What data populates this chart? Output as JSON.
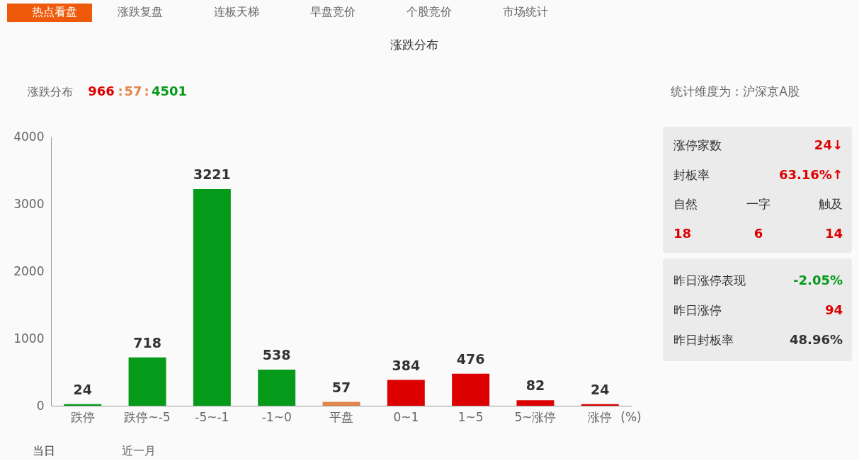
{
  "chart_data": [
    {
      "type": "bar",
      "title": "涨跌分布",
      "xlabel": "(%)",
      "categories": [
        "跌停",
        "跌停~-5",
        "-5~-1",
        "-1~0",
        "平盘",
        "0~1",
        "1~5",
        "5~涨停",
        "涨停"
      ],
      "values": [
        24,
        718,
        3221,
        538,
        57,
        384,
        476,
        82,
        24
      ],
      "colors": [
        "#069a1a",
        "#069a1a",
        "#069a1a",
        "#069a1a",
        "#e0854c",
        "#dd0000",
        "#dd0000",
        "#dd0000",
        "#dd0000"
      ],
      "data_labels": true,
      "ylim": [
        0,
        4000
      ],
      "yticks": [
        0,
        1000,
        2000,
        3000,
        4000
      ],
      "grid": false,
      "annotations": [
        "热点看盘",
        "涨跌复盘",
        "连板天梯",
        "早盘竞价",
        "个股竞价",
        "市场统计",
        "涨跌分布",
        "966",
        ":",
        "57",
        ":",
        "4501",
        "当日",
        "近一月"
      ]
    },
    {
      "type": "other",
      "annotations": [
        "统计维度为：沪深京A股",
        "涨停家数",
        "24↓",
        "封板率",
        "63.16%↑",
        "自然",
        "一字",
        "触及",
        "18",
        "6",
        "14",
        "昨日涨停表现",
        "-2.05%",
        "昨日涨停",
        "94",
        "昨日封板率",
        "48.96%"
      ]
    }
  ]
}
